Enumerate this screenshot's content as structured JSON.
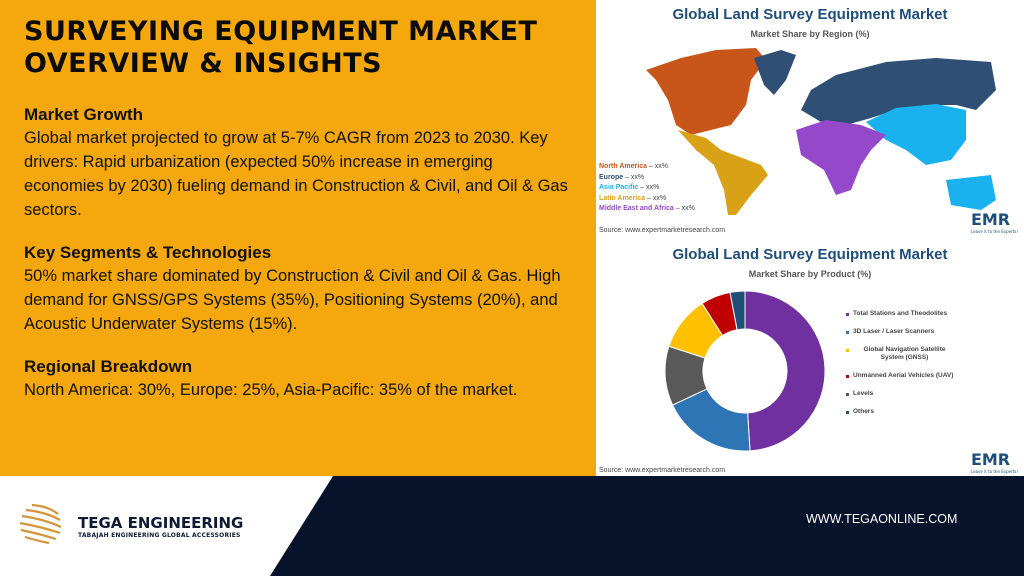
{
  "left": {
    "title": "Surveying Equipment Market Overview & Insights",
    "sections": [
      {
        "heading": "Market Growth",
        "body": "Global market projected to grow at 5-7% CAGR from 2023 to 2030. Key drivers: Rapid urbanization (expected 50% increase in emerging economies by 2030) fueling demand in Construction & Civil, and Oil & Gas sectors."
      },
      {
        "heading": "Key Segments & Technologies",
        "body": "50% market share dominated by Construction & Civil and Oil & Gas. High demand for GNSS/GPS Systems (35%), Positioning Systems (20%), and Acoustic Underwater Systems (15%)."
      },
      {
        "heading": "Regional Breakdown",
        "body": "North America: 30%, Europe: 25%, Asia-Pacific: 35% of the market."
      }
    ]
  },
  "map_panel": {
    "title": "Global Land Survey Equipment Market",
    "subtitle": "Market Share by Region (%)",
    "source": "Source: www.expertmarketresearch.com",
    "logo": "EMR",
    "logo_tagline": "Leave it to the Experts!",
    "legend": [
      {
        "name": "North America",
        "value": "– xx%",
        "color": "#c8561a"
      },
      {
        "name": "Europe",
        "value": "– xx%",
        "color": "#2f4f75"
      },
      {
        "name": "Asia Pacific",
        "value": "– xx%",
        "color": "#1ab2ee"
      },
      {
        "name": "Latin America",
        "value": "– xx%",
        "color": "#d9a216"
      },
      {
        "name": "Middle East and Africa",
        "value": "– xx%",
        "color": "#9548c9"
      }
    ]
  },
  "chart_data": {
    "type": "pie",
    "title": "Global Land Survey Equipment Market",
    "subtitle": "Market Share by Product (%)",
    "categories": [
      "Total Stations and Theodolites",
      "3D Laser / Laser Scanners",
      "Global Navigation Satellite System (GNSS)",
      "Unmanned Aerial Vehicles (UAV)",
      "Levels",
      "Others"
    ],
    "values": [
      49,
      19,
      11,
      6,
      12,
      3
    ],
    "colors": [
      "#7030a0",
      "#2e75b6",
      "#ffc000",
      "#c00000",
      "#595959",
      "#1f4e79"
    ],
    "draw_order": [
      0,
      1,
      4,
      2,
      3,
      5
    ],
    "legend_position": "right",
    "source": "Source: www.expertmarketresearch.com",
    "logo": "EMR"
  },
  "footer": {
    "brand": "TEGA ENGINEERING",
    "tagline": "TABAJAH ENGINEERING GLOBAL ACCESSORIES",
    "url": "WWW.TEGAONLINE.COM"
  }
}
